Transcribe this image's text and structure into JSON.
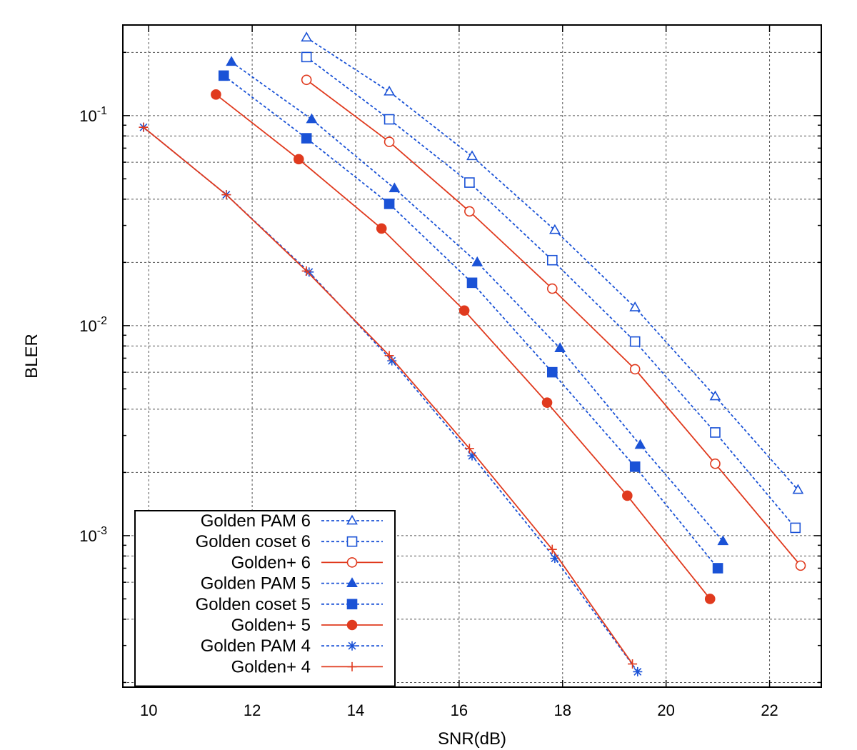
{
  "chart_data": {
    "type": "line",
    "xlabel": "SNR(dB)",
    "ylabel": "BLER",
    "xlim": [
      9.5,
      23
    ],
    "ylim": [
      0.00019,
      0.27
    ],
    "yscale": "log",
    "grid": true,
    "legend_position": "bottom-left",
    "x_ticks": [
      "10",
      "12",
      "14",
      "16",
      "18",
      "20",
      "22"
    ],
    "y_ticks": [
      {
        "value": 0.1,
        "base": "10",
        "exp": "-1"
      },
      {
        "value": 0.01,
        "base": "10",
        "exp": "-2"
      },
      {
        "value": 0.001,
        "base": "10",
        "exp": "-3"
      }
    ],
    "series": [
      {
        "name": "Golden PAM 6",
        "color": "#1a52d6",
        "dash": "dotted",
        "marker": "triangle-open",
        "x": [
          13.05,
          14.65,
          16.25,
          17.85,
          19.4,
          20.95,
          22.55
        ],
        "y": [
          0.235,
          0.13,
          0.064,
          0.0285,
          0.0122,
          0.0046,
          0.00165
        ]
      },
      {
        "name": "Golden coset 6",
        "color": "#1a52d6",
        "dash": "dotted",
        "marker": "square-open",
        "x": [
          13.05,
          14.65,
          16.2,
          17.8,
          19.4,
          20.95,
          22.5
        ],
        "y": [
          0.19,
          0.096,
          0.048,
          0.0205,
          0.0084,
          0.0031,
          0.00109
        ]
      },
      {
        "name": "Golden+ 6",
        "color": "#e03a1e",
        "dash": "solid",
        "marker": "circle-open",
        "x": [
          13.05,
          14.65,
          16.2,
          17.8,
          19.4,
          20.95,
          22.6
        ],
        "y": [
          0.148,
          0.075,
          0.035,
          0.015,
          0.0062,
          0.0022,
          0.00072
        ]
      },
      {
        "name": "Golden PAM 5",
        "color": "#1a52d6",
        "dash": "dotted",
        "marker": "triangle-filled",
        "x": [
          11.6,
          13.15,
          14.75,
          16.35,
          17.95,
          19.5,
          21.1
        ],
        "y": [
          0.18,
          0.096,
          0.045,
          0.02,
          0.0078,
          0.0027,
          0.00094
        ]
      },
      {
        "name": "Golden coset 5",
        "color": "#1a52d6",
        "dash": "dotted",
        "marker": "square-filled",
        "x": [
          11.45,
          13.05,
          14.65,
          16.25,
          17.8,
          19.4,
          21.0
        ],
        "y": [
          0.155,
          0.078,
          0.038,
          0.016,
          0.006,
          0.00213,
          0.0007
        ]
      },
      {
        "name": "Golden+ 5",
        "color": "#e03a1e",
        "dash": "solid",
        "marker": "circle-filled",
        "x": [
          11.3,
          12.9,
          14.5,
          16.1,
          17.7,
          19.25,
          20.85
        ],
        "y": [
          0.126,
          0.062,
          0.029,
          0.0118,
          0.0043,
          0.00155,
          0.0005
        ]
      },
      {
        "name": "Golden PAM 4",
        "color": "#1a52d6",
        "dash": "dotted",
        "marker": "asterisk",
        "x": [
          9.9,
          11.5,
          13.1,
          14.7,
          16.25,
          17.85,
          19.45
        ],
        "y": [
          0.088,
          0.042,
          0.018,
          0.0068,
          0.0024,
          0.00078,
          0.000225
        ]
      },
      {
        "name": "Golden+ 4",
        "color": "#e03a1e",
        "dash": "solid",
        "marker": "plus",
        "x": [
          9.9,
          11.5,
          13.05,
          14.65,
          16.2,
          17.8,
          19.35
        ],
        "y": [
          0.088,
          0.042,
          0.0182,
          0.0072,
          0.0026,
          0.00086,
          0.000245
        ]
      }
    ]
  }
}
